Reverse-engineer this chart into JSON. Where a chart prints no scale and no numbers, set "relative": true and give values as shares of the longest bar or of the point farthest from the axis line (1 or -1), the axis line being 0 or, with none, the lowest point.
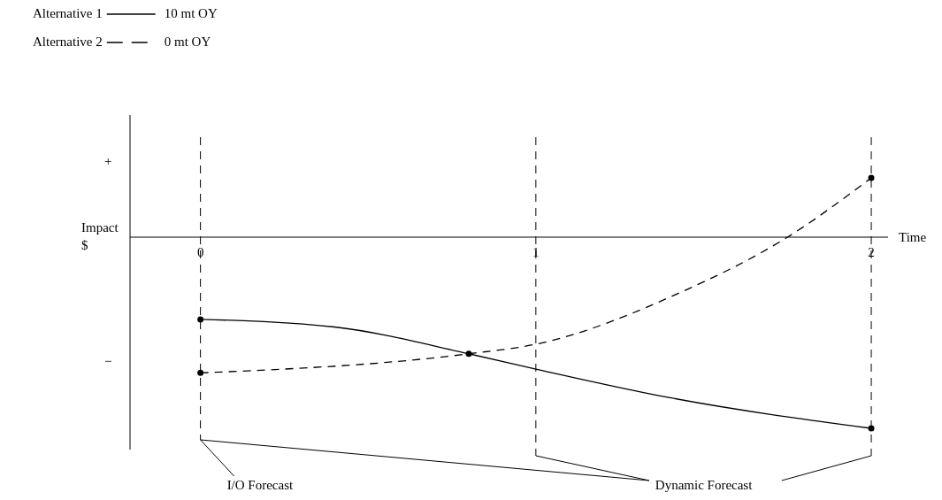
{
  "chart_data": {
    "type": "line",
    "relative": true,
    "xlabel": "Time",
    "ylabel": "Impact $",
    "x": [
      0,
      0.4,
      0.8,
      1,
      1.4,
      2
    ],
    "xlim": [
      -0.21,
      2.05
    ],
    "xticks": [
      0,
      1,
      2
    ],
    "series": [
      {
        "name": "Alternative 1",
        "color": "#000000",
        "line_style": "solid",
        "values": [
          -0.43,
          -0.47,
          -0.61,
          -0.69,
          -0.84,
          -1
        ]
      },
      {
        "name": "Alternative 2",
        "color": "#000000",
        "line_style": "dashed",
        "x": [
          0,
          0.8,
          1,
          1.43,
          1.75,
          2
        ],
        "values": [
          -0.71,
          -0.61,
          -0.56,
          -0.29,
          0,
          0.31
        ]
      },
      {
        "type": "scatter",
        "color": "#000000",
        "marker": "circle",
        "x": [
          0,
          0,
          0.8,
          2,
          2
        ],
        "values": [
          -0.43,
          -0.71,
          -0.61,
          -1,
          0.31
        ]
      }
    ],
    "ref_lines": [
      {
        "axis": "x",
        "value": 0,
        "line_style": "dashed"
      },
      {
        "axis": "x",
        "value": 1,
        "line_style": "dashed"
      },
      {
        "axis": "x",
        "value": 2,
        "line_style": "dashed"
      }
    ],
    "annotations": [
      "+",
      "−",
      "10 mt OY",
      "0 mt OY",
      "I/O Forecast",
      "Dynamic Forecast"
    ],
    "legend": "top left"
  }
}
